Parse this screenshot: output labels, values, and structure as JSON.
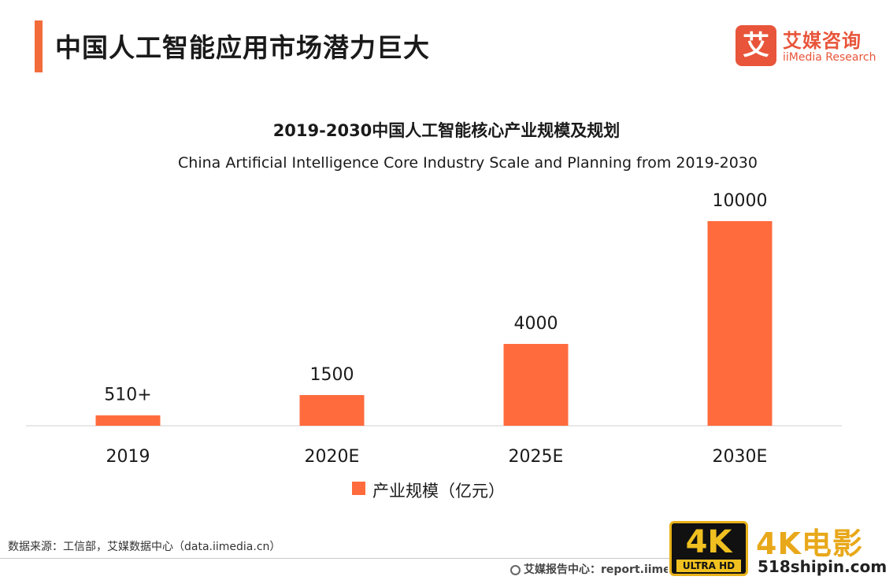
{
  "header": {
    "title": "中国人工智能应用市场潜力巨大",
    "accent_color": "#f26b3a"
  },
  "logo": {
    "mark": "艾",
    "name_cn": "艾媒咨询",
    "name_en": "iiMedia Research",
    "color": "#e8553a"
  },
  "chart_data": {
    "type": "bar",
    "title": "2019-2030中国人工智能核心产业规模及规划",
    "subtitle": "China Artificial Intelligence Core Industry Scale and Planning from 2019-2030",
    "categories": [
      "2019",
      "2020E",
      "2025E",
      "2030E"
    ],
    "series": [
      {
        "name": "产业规模（亿元）",
        "values": [
          510,
          1500,
          4000,
          10000
        ],
        "labels": [
          "510+",
          "1500",
          "4000",
          "10000"
        ],
        "color": "#ff6b3d"
      }
    ],
    "ylim": [
      0,
      10000
    ],
    "grid": false,
    "legend_position": "bottom"
  },
  "footer": {
    "source": "数据来源：工信部，艾媒数据中心（data.iimedia.cn）",
    "report_site": "艾媒报告中心：report.iimedia.cn"
  },
  "watermark": {
    "badge_main": "4K",
    "badge_sub": "ULTRA HD",
    "brand": "4K电影",
    "site": "518shipin.com"
  }
}
